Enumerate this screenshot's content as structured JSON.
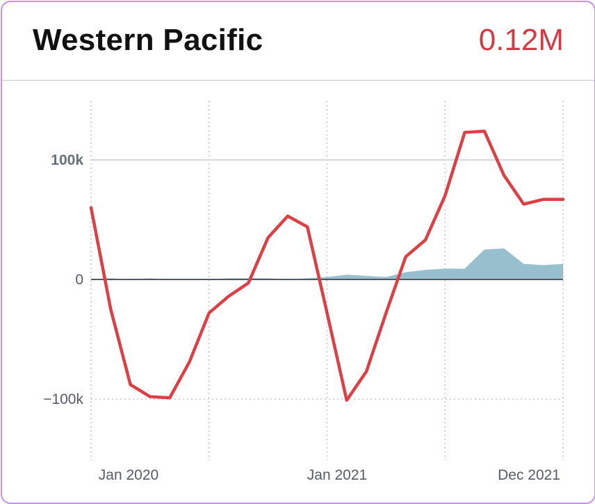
{
  "header": {
    "title": "Western Pacific",
    "value": "0.12M",
    "value_color": "#d63a40"
  },
  "chart_data": {
    "type": "line",
    "title": "Western Pacific",
    "x_tick_labels": [
      "Jan 2020",
      "Jan 2021",
      "Dec 2021"
    ],
    "y_tick_labels": [
      "100k",
      "0",
      "−100k"
    ],
    "y_ticks": [
      100000,
      0,
      -100000
    ],
    "ylim": [
      -150000,
      150000
    ],
    "x": [
      "2019-12",
      "2020-01",
      "2020-02",
      "2020-03",
      "2020-04",
      "2020-05",
      "2020-06",
      "2020-07",
      "2020-08",
      "2020-09",
      "2020-10",
      "2020-11",
      "2020-12",
      "2021-01",
      "2021-02",
      "2021-03",
      "2021-04",
      "2021-05",
      "2021-06",
      "2021-07",
      "2021-08",
      "2021-09",
      "2021-10",
      "2021-11",
      "2021-12"
    ],
    "series": [
      {
        "type": "line",
        "color": "#df3f44",
        "values": [
          60000,
          -25000,
          -88000,
          -98000,
          -99000,
          -69000,
          -28000,
          -14000,
          -3000,
          35000,
          53000,
          44000,
          -28000,
          -101000,
          -77000,
          -28000,
          19000,
          33000,
          70000,
          123000,
          124000,
          87000,
          63000,
          67000,
          67000
        ]
      },
      {
        "type": "area",
        "color": "#98bfcd",
        "values": [
          0,
          1000,
          0,
          1000,
          0,
          0,
          0,
          1000,
          1000,
          1000,
          0,
          1000,
          2000,
          4000,
          3000,
          2000,
          6000,
          8000,
          9000,
          9000,
          25000,
          26000,
          13000,
          12000,
          13000
        ]
      }
    ],
    "grid": "dotted vertical, solid horizontal at 100k and -100k dotted",
    "legend": "none"
  }
}
